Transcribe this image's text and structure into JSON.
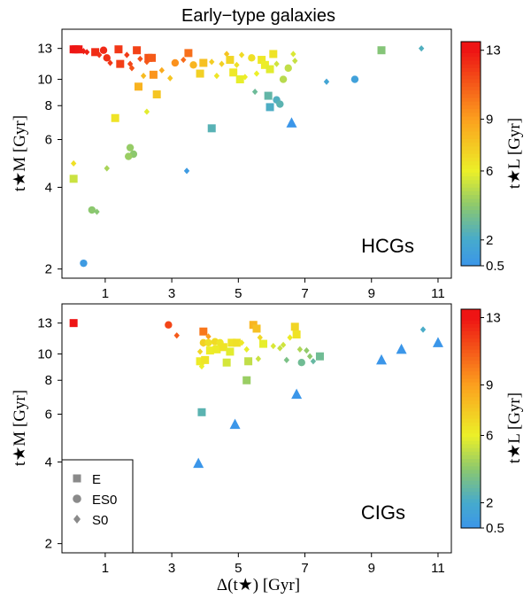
{
  "figure_title": "Early−type galaxies",
  "xaxis_label": "Δ(t★) [Gyr]",
  "yaxis_label": "t★M [Gyr]",
  "colorbar_label": "t★L [Gyr]",
  "legend": [
    {
      "marker": "square",
      "label": "E"
    },
    {
      "marker": "circle",
      "label": "ES0"
    },
    {
      "marker": "diamond",
      "label": "S0"
    }
  ],
  "chart_data": [
    {
      "type": "scatter",
      "panel_label": "HCGs",
      "xlabel": "Δ(t★) [Gyr]",
      "ylabel": "t★M [Gyr]",
      "yscale": "log",
      "xlim": [
        -0.3,
        11.4
      ],
      "ylim": [
        1.85,
        15.3
      ],
      "xticks": [
        1,
        3,
        5,
        7,
        9,
        11
      ],
      "xtick_labels": [
        "1",
        "3",
        "5",
        "7",
        "9",
        "11"
      ],
      "yticks": [
        2,
        4,
        6,
        8,
        10,
        13
      ],
      "ytick_labels": [
        "2",
        "4",
        "6",
        "8",
        "10",
        "13"
      ],
      "colorbar": {
        "ticks": [
          0.5,
          2,
          6,
          9,
          13
        ],
        "tick_labels": [
          "0.5",
          "2",
          "6",
          "9",
          "13"
        ],
        "range": [
          0.5,
          13.5
        ]
      },
      "points": [
        {
          "x": 0.05,
          "y": 12.9,
          "m": "square",
          "c": 13
        },
        {
          "x": 0.12,
          "y": 12.9,
          "m": "square",
          "c": 13
        },
        {
          "x": 0.2,
          "y": 12.9,
          "m": "square",
          "c": 12.9
        },
        {
          "x": 0.27,
          "y": 12.8,
          "m": "diamond",
          "c": 12.8
        },
        {
          "x": 0.35,
          "y": 12.7,
          "m": "diamond",
          "c": 12.7
        },
        {
          "x": 0.45,
          "y": 12.6,
          "m": "diamond",
          "c": 12.6
        },
        {
          "x": 0.7,
          "y": 12.6,
          "m": "square",
          "c": 12.3
        },
        {
          "x": 0.82,
          "y": 12.3,
          "m": "diamond",
          "c": 12.2
        },
        {
          "x": 0.95,
          "y": 12.8,
          "m": "circle",
          "c": 12.4
        },
        {
          "x": 1.05,
          "y": 12.0,
          "m": "circle",
          "c": 12.2
        },
        {
          "x": 1.15,
          "y": 11.5,
          "m": "diamond",
          "c": 12.0
        },
        {
          "x": 1.4,
          "y": 12.9,
          "m": "square",
          "c": 12.0
        },
        {
          "x": 1.45,
          "y": 11.4,
          "m": "square",
          "c": 11.8
        },
        {
          "x": 1.65,
          "y": 12.3,
          "m": "diamond",
          "c": 11.9
        },
        {
          "x": 1.75,
          "y": 11.4,
          "m": "diamond",
          "c": 11.6
        },
        {
          "x": 1.8,
          "y": 11.0,
          "m": "diamond",
          "c": 11.2
        },
        {
          "x": 1.95,
          "y": 12.8,
          "m": "square",
          "c": 11.7
        },
        {
          "x": 2.05,
          "y": 11.9,
          "m": "diamond",
          "c": 11.3
        },
        {
          "x": 2.25,
          "y": 11.6,
          "m": "diamond",
          "c": 11.0
        },
        {
          "x": 2.3,
          "y": 12.0,
          "m": "square",
          "c": 11.2
        },
        {
          "x": 2.4,
          "y": 12.0,
          "m": "square",
          "c": 11.0
        },
        {
          "x": 2.45,
          "y": 10.4,
          "m": "square",
          "c": 9.3
        },
        {
          "x": 2.0,
          "y": 9.4,
          "m": "square",
          "c": 8.3
        },
        {
          "x": 2.55,
          "y": 8.8,
          "m": "square",
          "c": 7.6
        },
        {
          "x": 2.15,
          "y": 10.3,
          "m": "diamond",
          "c": 8.0
        },
        {
          "x": 2.7,
          "y": 10.8,
          "m": "diamond",
          "c": 8.6
        },
        {
          "x": 2.95,
          "y": 10.1,
          "m": "diamond",
          "c": 7.6
        },
        {
          "x": 3.1,
          "y": 11.5,
          "m": "circle",
          "c": 9.4
        },
        {
          "x": 3.35,
          "y": 11.8,
          "m": "diamond",
          "c": 10.5
        },
        {
          "x": 3.5,
          "y": 12.5,
          "m": "square",
          "c": 10.4
        },
        {
          "x": 3.65,
          "y": 11.3,
          "m": "circle",
          "c": 8.2
        },
        {
          "x": 3.85,
          "y": 10.5,
          "m": "square",
          "c": 7.2
        },
        {
          "x": 3.95,
          "y": 11.5,
          "m": "square",
          "c": 7.8
        },
        {
          "x": 4.2,
          "y": 11.6,
          "m": "diamond",
          "c": 7.3
        },
        {
          "x": 4.35,
          "y": 10.3,
          "m": "diamond",
          "c": 6.4
        },
        {
          "x": 4.5,
          "y": 11.4,
          "m": "diamond",
          "c": 7.2
        },
        {
          "x": 4.65,
          "y": 12.4,
          "m": "diamond",
          "c": 7.7
        },
        {
          "x": 4.75,
          "y": 11.8,
          "m": "square",
          "c": 7.0
        },
        {
          "x": 4.85,
          "y": 10.6,
          "m": "square",
          "c": 6.3
        },
        {
          "x": 4.95,
          "y": 11.3,
          "m": "diamond",
          "c": 6.6
        },
        {
          "x": 5.05,
          "y": 10.0,
          "m": "square",
          "c": 5.9
        },
        {
          "x": 5.1,
          "y": 12.3,
          "m": "diamond",
          "c": 6.8
        },
        {
          "x": 5.2,
          "y": 10.2,
          "m": "diamond",
          "c": 6.1
        },
        {
          "x": 5.4,
          "y": 12.0,
          "m": "circle",
          "c": 6.6
        },
        {
          "x": 5.55,
          "y": 10.5,
          "m": "diamond",
          "c": 6.0
        },
        {
          "x": 5.7,
          "y": 11.8,
          "m": "square",
          "c": 6.3
        },
        {
          "x": 5.8,
          "y": 11.3,
          "m": "square",
          "c": 6.1
        },
        {
          "x": 5.95,
          "y": 10.9,
          "m": "square",
          "c": 5.8
        },
        {
          "x": 6.05,
          "y": 12.4,
          "m": "square",
          "c": 6.5
        },
        {
          "x": 6.15,
          "y": 11.4,
          "m": "diamond",
          "c": 5.4
        },
        {
          "x": 6.35,
          "y": 10.0,
          "m": "circle",
          "c": 4.9
        },
        {
          "x": 6.5,
          "y": 11.0,
          "m": "circle",
          "c": 5.1
        },
        {
          "x": 6.65,
          "y": 12.4,
          "m": "diamond",
          "c": 5.6
        },
        {
          "x": 6.7,
          "y": 11.7,
          "m": "diamond",
          "c": 5.2
        },
        {
          "x": 5.5,
          "y": 9.0,
          "m": "diamond",
          "c": 3.1
        },
        {
          "x": 5.9,
          "y": 8.7,
          "m": "square",
          "c": 2.8
        },
        {
          "x": 5.95,
          "y": 7.9,
          "m": "square",
          "c": 2.2
        },
        {
          "x": 6.15,
          "y": 8.4,
          "m": "circle",
          "c": 2.3
        },
        {
          "x": 6.25,
          "y": 8.1,
          "m": "circle",
          "c": 2.6
        },
        {
          "x": 6.6,
          "y": 6.9,
          "m": "triangle",
          "c": 0.5
        },
        {
          "x": 7.65,
          "y": 9.8,
          "m": "diamond",
          "c": 1.6
        },
        {
          "x": 8.5,
          "y": 10.0,
          "m": "circle",
          "c": 1.3
        },
        {
          "x": 9.3,
          "y": 12.8,
          "m": "square",
          "c": 3.8
        },
        {
          "x": 10.5,
          "y": 13.0,
          "m": "diamond",
          "c": 2.3
        },
        {
          "x": 1.3,
          "y": 7.2,
          "m": "square",
          "c": 6.5
        },
        {
          "x": 1.75,
          "y": 5.6,
          "m": "circle",
          "c": 4.2
        },
        {
          "x": 1.85,
          "y": 5.3,
          "m": "circle",
          "c": 4.0
        },
        {
          "x": 1.7,
          "y": 5.2,
          "m": "circle",
          "c": 4.3
        },
        {
          "x": 1.05,
          "y": 4.7,
          "m": "diamond",
          "c": 4.6
        },
        {
          "x": 2.25,
          "y": 7.6,
          "m": "diamond",
          "c": 5.8
        },
        {
          "x": 4.2,
          "y": 6.6,
          "m": "square",
          "c": 2.5
        },
        {
          "x": 3.45,
          "y": 4.6,
          "m": "diamond",
          "c": 0.9
        },
        {
          "x": 0.05,
          "y": 4.9,
          "m": "diamond",
          "c": 6.6
        },
        {
          "x": 0.05,
          "y": 4.3,
          "m": "square",
          "c": 5.3
        },
        {
          "x": 0.6,
          "y": 3.3,
          "m": "circle",
          "c": 4.0
        },
        {
          "x": 0.75,
          "y": 3.25,
          "m": "diamond",
          "c": 3.9
        },
        {
          "x": 0.35,
          "y": 2.1,
          "m": "circle",
          "c": 0.9
        }
      ]
    },
    {
      "type": "scatter",
      "panel_label": "CIGs",
      "xlabel": "Δ(t★) [Gyr]",
      "ylabel": "t★M [Gyr]",
      "yscale": "log",
      "xlim": [
        -0.3,
        11.4
      ],
      "ylim": [
        1.85,
        15.3
      ],
      "xticks": [
        1,
        3,
        5,
        7,
        9,
        11
      ],
      "xtick_labels": [
        "1",
        "3",
        "5",
        "7",
        "9",
        "11"
      ],
      "yticks": [
        2,
        4,
        6,
        8,
        10,
        13
      ],
      "ytick_labels": [
        "2",
        "4",
        "6",
        "8",
        "10",
        "13"
      ],
      "colorbar": {
        "ticks": [
          0.5,
          2,
          6,
          9,
          13
        ],
        "tick_labels": [
          "0.5",
          "2",
          "6",
          "9",
          "13"
        ],
        "range": [
          0.5,
          13.5
        ]
      },
      "points": [
        {
          "x": 0.05,
          "y": 13.0,
          "m": "square",
          "c": 13.0
        },
        {
          "x": 2.9,
          "y": 12.8,
          "m": "circle",
          "c": 11.6
        },
        {
          "x": 3.15,
          "y": 11.7,
          "m": "diamond",
          "c": 11.0
        },
        {
          "x": 3.95,
          "y": 12.1,
          "m": "square",
          "c": 10.2
        },
        {
          "x": 4.1,
          "y": 11.6,
          "m": "diamond",
          "c": 9.0
        },
        {
          "x": 3.95,
          "y": 10.9,
          "m": "diamond",
          "c": 7.2
        },
        {
          "x": 3.85,
          "y": 10.2,
          "m": "diamond",
          "c": 7.0
        },
        {
          "x": 3.9,
          "y": 9.0,
          "m": "diamond",
          "c": 6.0
        },
        {
          "x": 3.85,
          "y": 9.4,
          "m": "square",
          "c": 6.2
        },
        {
          "x": 4.0,
          "y": 9.5,
          "m": "square",
          "c": 6.4
        },
        {
          "x": 3.95,
          "y": 11.0,
          "m": "circle",
          "c": 7.2
        },
        {
          "x": 4.1,
          "y": 11.0,
          "m": "circle",
          "c": 6.6
        },
        {
          "x": 4.3,
          "y": 11.1,
          "m": "circle",
          "c": 6.8
        },
        {
          "x": 4.45,
          "y": 11.0,
          "m": "circle",
          "c": 6.4
        },
        {
          "x": 4.15,
          "y": 10.3,
          "m": "square",
          "c": 6.1
        },
        {
          "x": 4.35,
          "y": 10.4,
          "m": "square",
          "c": 6.2
        },
        {
          "x": 4.55,
          "y": 10.6,
          "m": "square",
          "c": 6.5
        },
        {
          "x": 4.8,
          "y": 11.0,
          "m": "square",
          "c": 6.5
        },
        {
          "x": 4.95,
          "y": 11.0,
          "m": "square",
          "c": 6.6
        },
        {
          "x": 4.75,
          "y": 10.2,
          "m": "square",
          "c": 5.8
        },
        {
          "x": 5.1,
          "y": 11.0,
          "m": "diamond",
          "c": 6.3
        },
        {
          "x": 5.25,
          "y": 10.4,
          "m": "diamond",
          "c": 5.9
        },
        {
          "x": 5.45,
          "y": 12.8,
          "m": "square",
          "c": 8.2
        },
        {
          "x": 5.55,
          "y": 12.4,
          "m": "square",
          "c": 7.8
        },
        {
          "x": 5.65,
          "y": 11.5,
          "m": "diamond",
          "c": 6.9
        },
        {
          "x": 5.75,
          "y": 10.9,
          "m": "square",
          "c": 5.9
        },
        {
          "x": 5.3,
          "y": 9.4,
          "m": "square",
          "c": 5.1
        },
        {
          "x": 4.65,
          "y": 9.3,
          "m": "square",
          "c": 5.5
        },
        {
          "x": 5.6,
          "y": 9.6,
          "m": "diamond",
          "c": 5.3
        },
        {
          "x": 6.05,
          "y": 10.7,
          "m": "diamond",
          "c": 5.6
        },
        {
          "x": 6.25,
          "y": 10.5,
          "m": "diamond",
          "c": 5.2
        },
        {
          "x": 6.35,
          "y": 10.8,
          "m": "diamond",
          "c": 5.4
        },
        {
          "x": 6.55,
          "y": 11.5,
          "m": "diamond",
          "c": 6.2
        },
        {
          "x": 6.7,
          "y": 12.6,
          "m": "square",
          "c": 7.0
        },
        {
          "x": 6.75,
          "y": 11.8,
          "m": "square",
          "c": 6.5
        },
        {
          "x": 6.85,
          "y": 10.4,
          "m": "diamond",
          "c": 4.7
        },
        {
          "x": 7.15,
          "y": 9.8,
          "m": "diamond",
          "c": 4.0
        },
        {
          "x": 7.45,
          "y": 9.8,
          "m": "square",
          "c": 3.2
        },
        {
          "x": 7.05,
          "y": 10.3,
          "m": "diamond",
          "c": 4.1
        },
        {
          "x": 6.45,
          "y": 9.5,
          "m": "diamond",
          "c": 3.5
        },
        {
          "x": 6.9,
          "y": 9.3,
          "m": "circle",
          "c": 3.2
        },
        {
          "x": 7.25,
          "y": 9.4,
          "m": "diamond",
          "c": 2.9
        },
        {
          "x": 5.25,
          "y": 8.0,
          "m": "square",
          "c": 4.3
        },
        {
          "x": 3.9,
          "y": 6.1,
          "m": "square",
          "c": 2.6
        },
        {
          "x": 6.75,
          "y": 7.1,
          "m": "triangle",
          "c": 0.5
        },
        {
          "x": 4.9,
          "y": 5.5,
          "m": "triangle",
          "c": 0.5
        },
        {
          "x": 3.8,
          "y": 3.95,
          "m": "triangle",
          "c": 0.5
        },
        {
          "x": 9.3,
          "y": 9.5,
          "m": "triangle",
          "c": 0.5
        },
        {
          "x": 9.9,
          "y": 10.4,
          "m": "triangle",
          "c": 0.5
        },
        {
          "x": 11.0,
          "y": 11.0,
          "m": "triangle",
          "c": 0.5
        },
        {
          "x": 10.55,
          "y": 12.3,
          "m": "diamond",
          "c": 2.1
        }
      ]
    }
  ]
}
